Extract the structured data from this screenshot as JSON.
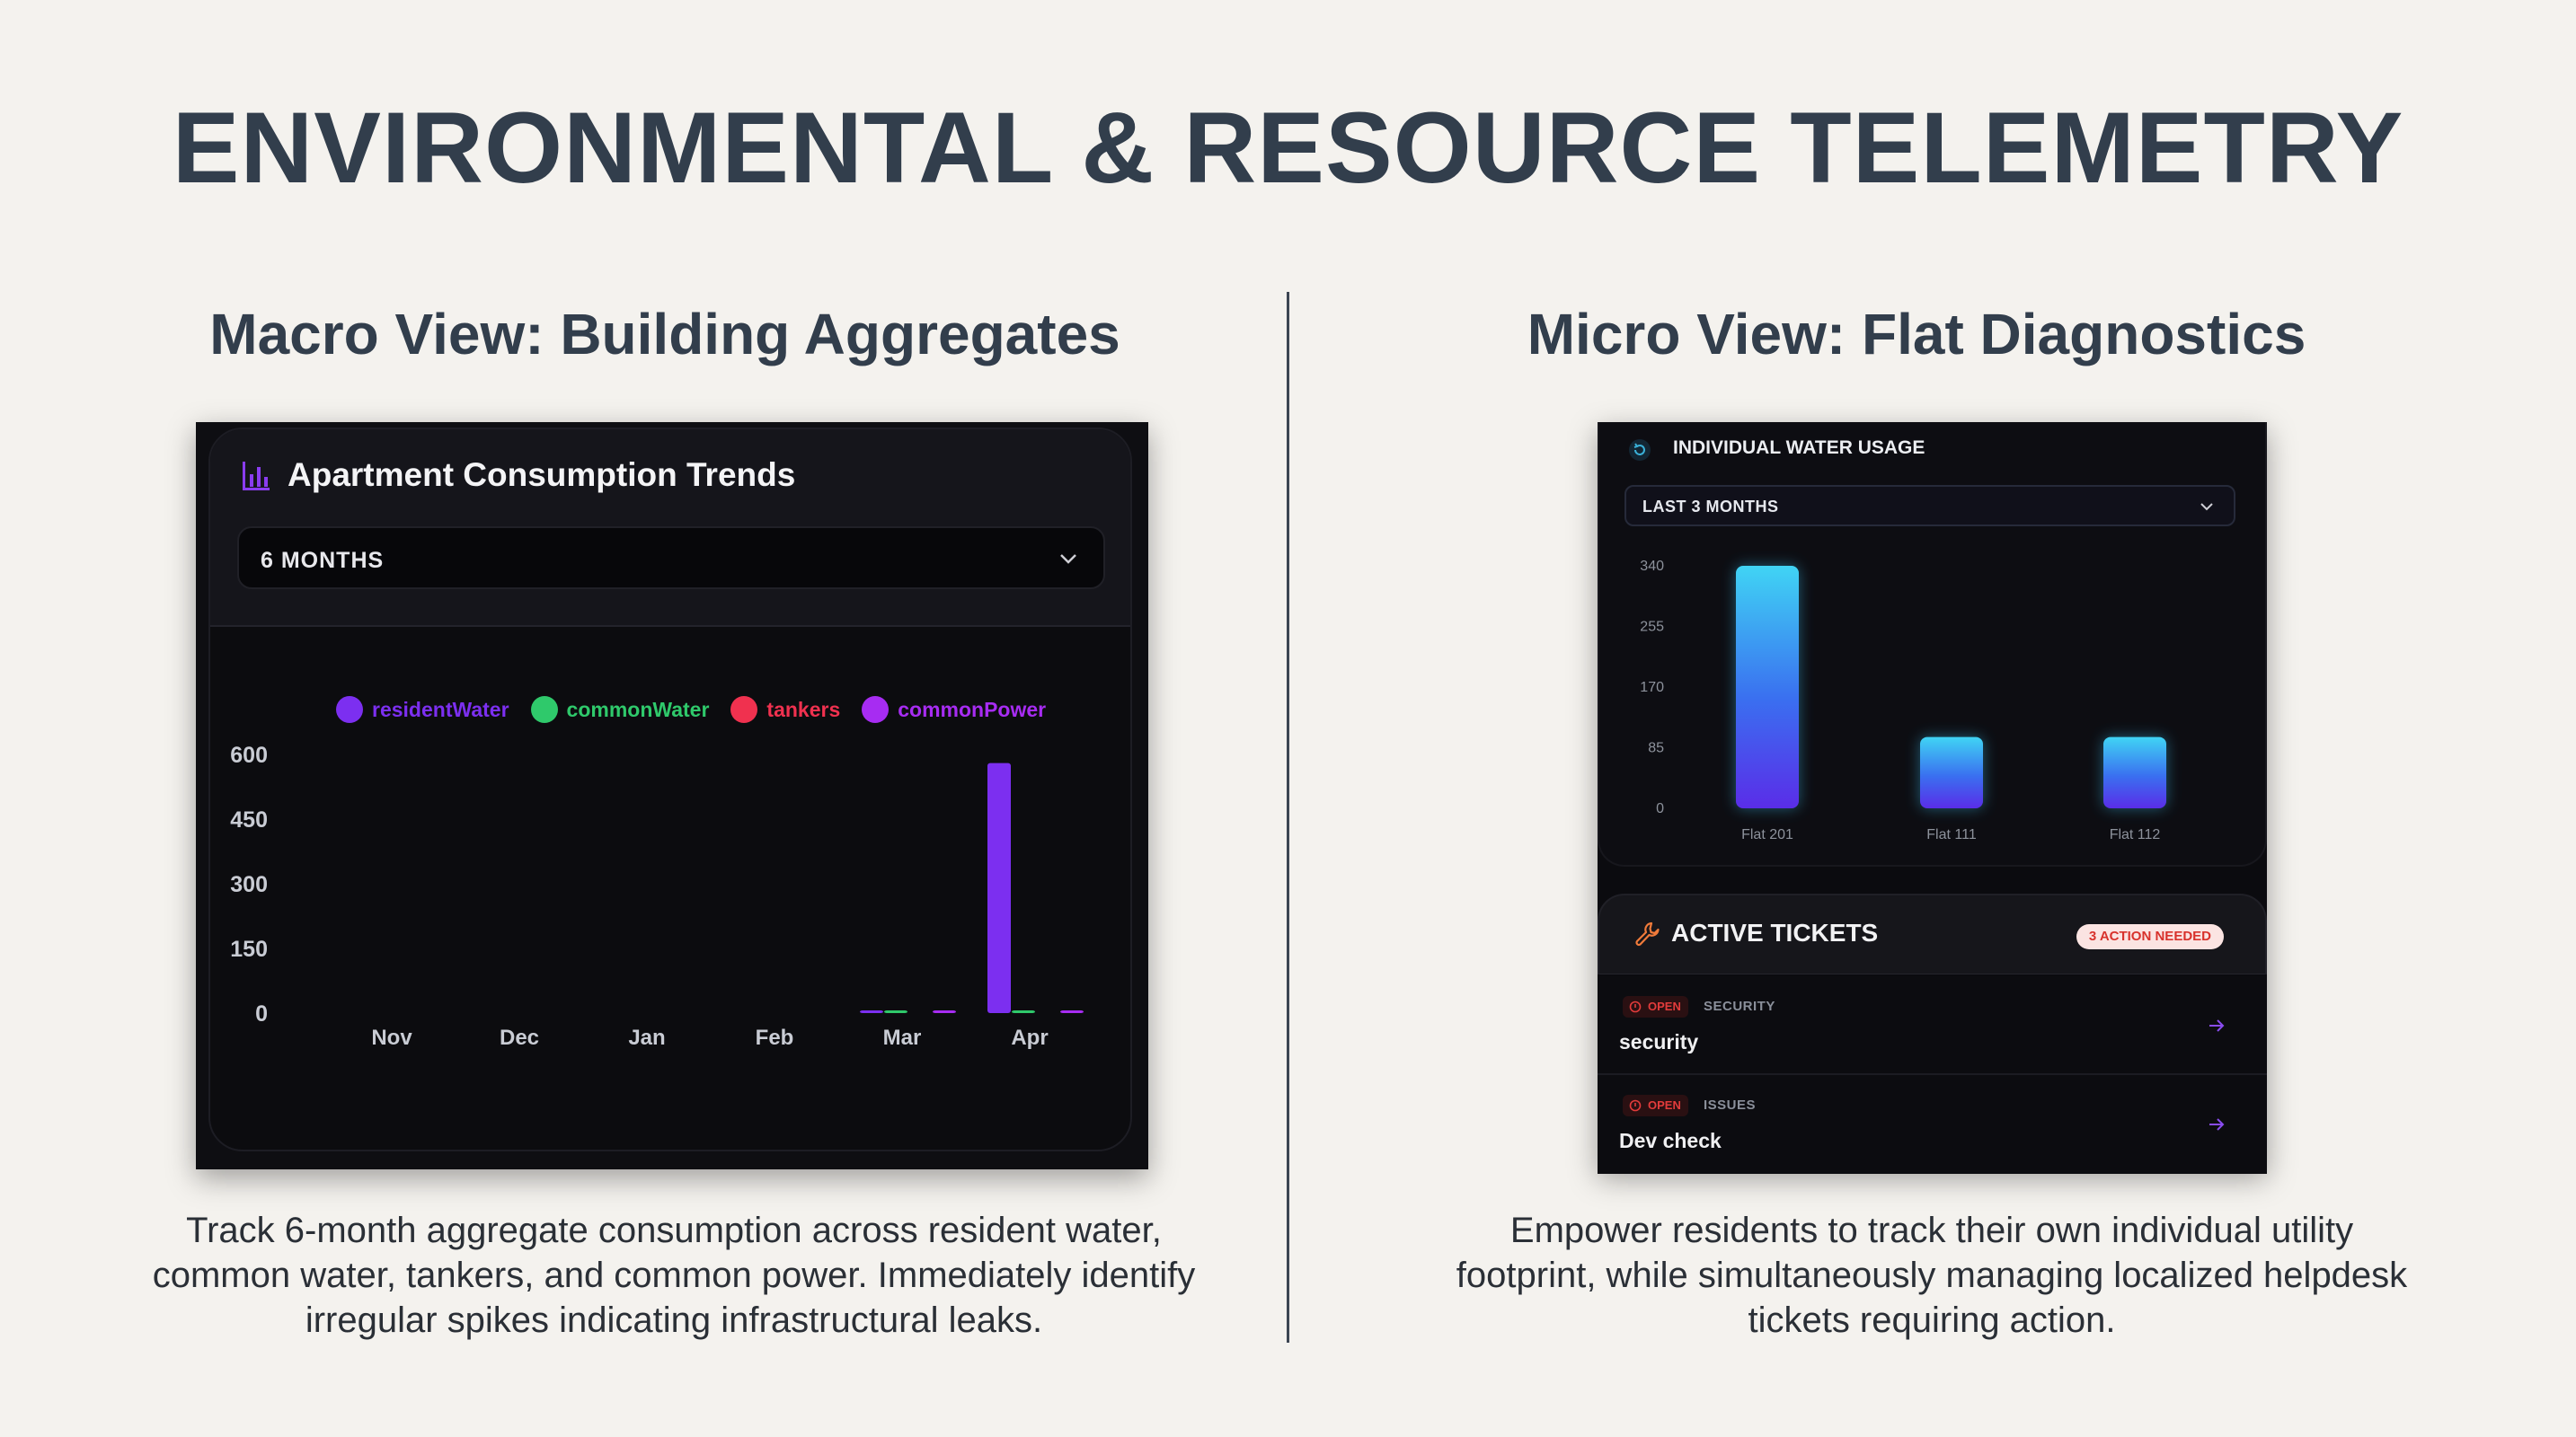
{
  "title": "ENVIRONMENTAL & RESOURCE TELEMETRY",
  "macro": {
    "heading": "Macro View: Building Aggregates",
    "card_title": "Apartment Consumption Trends",
    "range_select": "6 MONTHS",
    "caption": "Track 6-month aggregate consumption across resident water, common water, tankers, and common power. Immediately identify irregular spikes indicating infrastructural leaks.",
    "legend": [
      {
        "label": "residentWater",
        "color": "#7c2ff0"
      },
      {
        "label": "commonWater",
        "color": "#2fc96b"
      },
      {
        "label": "tankers",
        "color": "#f0314f"
      },
      {
        "label": "commonPower",
        "color": "#a72cf2"
      }
    ]
  },
  "micro": {
    "heading": "Micro View: Flat Diagnostics",
    "card_title": "INDIVIDUAL WATER USAGE",
    "range_select": "LAST 3 MONTHS",
    "caption": "Empower residents to track their own individual utility footprint, while simultaneously managing localized helpdesk tickets requiring action.",
    "tickets": {
      "title": "ACTIVE TICKETS",
      "badge": "3 ACTION NEEDED",
      "items": [
        {
          "status": "OPEN",
          "category": "SECURITY",
          "name": "security"
        },
        {
          "status": "OPEN",
          "category": "ISSUES",
          "name": "Dev check"
        }
      ]
    }
  },
  "colors": {
    "background": "#f4f2ee",
    "heading": "#323e4c",
    "panel": "#0e0e12",
    "accent_purple": "#7c2ff0",
    "accent_green": "#2fc96b",
    "accent_red": "#f0314f",
    "bar_cyan": "#3ad0f0"
  },
  "chart_data": [
    {
      "type": "bar",
      "categories": [
        "Nov",
        "Dec",
        "Jan",
        "Feb",
        "Mar",
        "Apr"
      ],
      "series": [
        {
          "name": "residentWater",
          "values": [
            0,
            0,
            0,
            0,
            2,
            580
          ]
        },
        {
          "name": "commonWater",
          "values": [
            0,
            0,
            0,
            0,
            5,
            5
          ]
        },
        {
          "name": "tankers",
          "values": [
            0,
            0,
            0,
            0,
            0,
            0
          ]
        },
        {
          "name": "commonPower",
          "values": [
            0,
            0,
            0,
            0,
            3,
            5
          ]
        }
      ],
      "yticks": [
        0,
        150,
        300,
        450,
        600
      ],
      "ylim": [
        0,
        600
      ],
      "legend_position": "top-center",
      "grid": false
    },
    {
      "type": "bar",
      "categories": [
        "Flat 201",
        "Flat 111",
        "Flat 112"
      ],
      "values": [
        340,
        100,
        100
      ],
      "yticks": [
        0,
        85,
        170,
        255,
        340
      ],
      "ylim": [
        0,
        340
      ],
      "grid": false
    }
  ]
}
